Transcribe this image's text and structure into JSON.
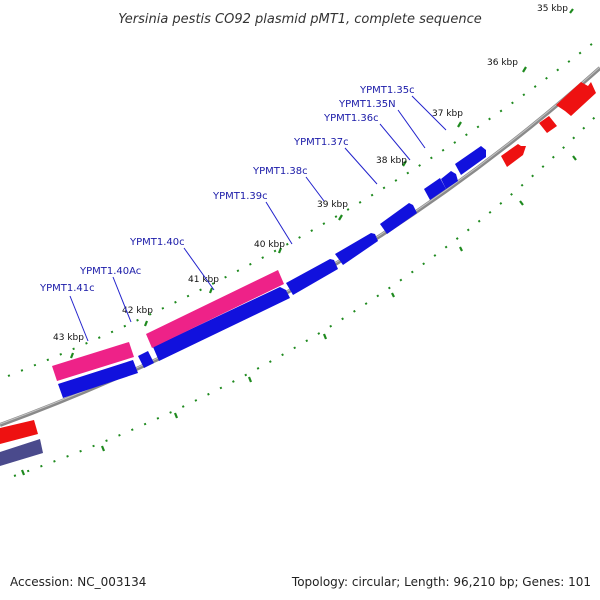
{
  "title": "Yersinia pestis CO92 plasmid pMT1, complete sequence",
  "footer": {
    "accession": "Accession: NC_003134",
    "summary": "Topology: circular; Length: 96,210 bp; Genes: 101"
  },
  "colors": {
    "backbone": "#8a8a8a",
    "tick": "#1f8a1f",
    "cds_forward": "#ee1111",
    "cds_reverse": "#1111dd",
    "rna": "#ee2288",
    "other": "#4a4a8c",
    "label_line": "#2222cc",
    "label_text": "#1a1aa8"
  },
  "kbp_labels": [
    "35 kbp",
    "36 kbp",
    "37 kbp",
    "38 kbp",
    "39 kbp",
    "40 kbp",
    "41 kbp",
    "42 kbp",
    "43 kbp"
  ],
  "gene_labels": [
    "YPMT1.35c",
    "YPMT1.35N",
    "YPMT1.36c",
    "YPMT1.37c",
    "YPMT1.38c",
    "YPMT1.39c",
    "YPMT1.40c",
    "YPMT1.40Ac",
    "YPMT1.41c"
  ]
}
